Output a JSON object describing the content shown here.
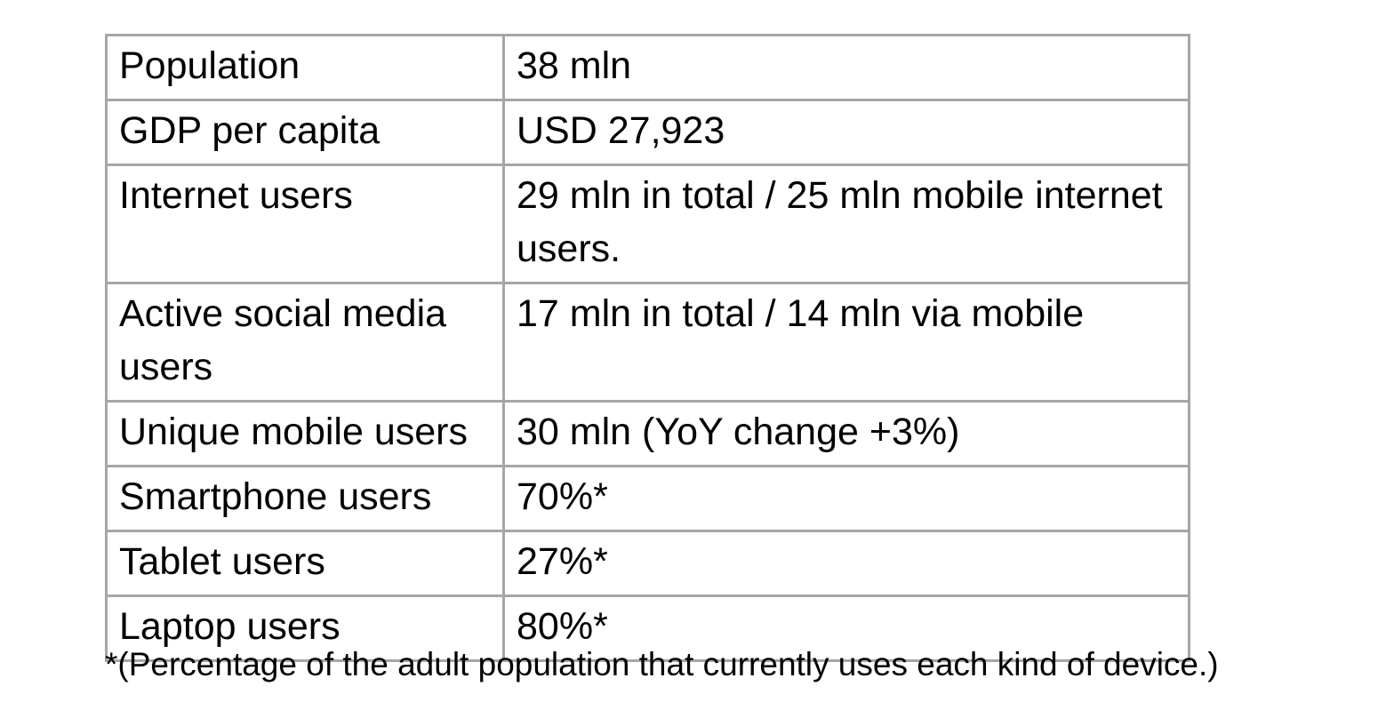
{
  "table": {
    "rows": [
      {
        "label": "Population",
        "value": "38 mln"
      },
      {
        "label": "GDP per capita",
        "value": "USD 27,923"
      },
      {
        "label": "Internet users",
        "value": "29 mln in total / 25 mln mobile internet users."
      },
      {
        "label": "Active social media users",
        "value": "17 mln in total / 14 mln via mobile"
      },
      {
        "label": "Unique mobile users",
        "value": "30 mln (YoY change +3%)"
      },
      {
        "label": "Smartphone users",
        "value": "70%*"
      },
      {
        "label": "Tablet users",
        "value": "27%*"
      },
      {
        "label": "Laptop users",
        "value": "80%*"
      }
    ]
  },
  "footnote": "*(Percentage of the adult population that currently uses each kind of device.)",
  "colors": {
    "border": "#a6a6a6",
    "text": "#000000",
    "background": "#ffffff"
  }
}
